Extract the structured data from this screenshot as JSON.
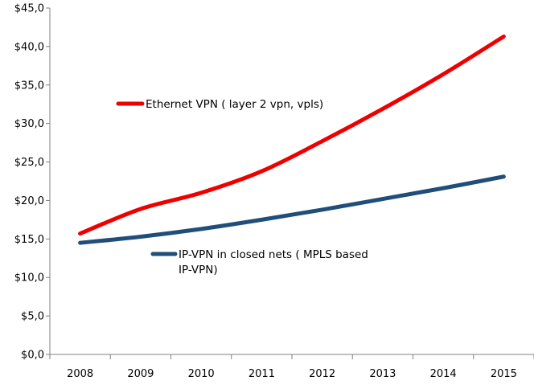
{
  "chart_data": {
    "type": "line",
    "title": "",
    "xlabel": "",
    "ylabel": "",
    "categories": [
      "2008",
      "2009",
      "2010",
      "2011",
      "2012",
      "2013",
      "2014",
      "2015"
    ],
    "ylim": [
      0,
      45
    ],
    "y_ticks": [
      "$0,0",
      "$5,0",
      "$10,0",
      "$15,0",
      "$20,0",
      "$25,0",
      "$30,0",
      "$35,0",
      "$40,0",
      "$45,0"
    ],
    "grid": false,
    "legend_placement": "inline",
    "series": [
      {
        "name": "Ethernet VPN ( layer 2 vpn, vpls)",
        "color": "#ee0000",
        "values": [
          15.7,
          18.9,
          21.0,
          23.8,
          27.7,
          31.9,
          36.4,
          41.3
        ]
      },
      {
        "name_lines": [
          "IP-VPN in closed nets ( MPLS based",
          "IP-VPN)"
        ],
        "color": "#1f4e79",
        "values": [
          14.5,
          15.3,
          16.3,
          17.5,
          18.8,
          20.2,
          21.6,
          23.1
        ]
      }
    ]
  }
}
